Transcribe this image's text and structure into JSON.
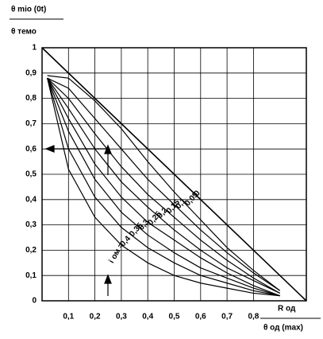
{
  "chart_data": {
    "type": "line",
    "ylabel_top": "θ mio (0t)",
    "ylabel_bottom": "θ темо",
    "xlabel_top": "R од",
    "xlabel_bottom": "θ од (max)",
    "annotation": "i ом =",
    "color": "#000000",
    "grid": true,
    "xlim": [
      0,
      1
    ],
    "ylim": [
      0,
      1
    ],
    "xticks": [
      {
        "value": 0.1,
        "label": "0,1"
      },
      {
        "value": 0.2,
        "label": "0,2"
      },
      {
        "value": 0.3,
        "label": "0,3"
      },
      {
        "value": 0.4,
        "label": "0,4"
      },
      {
        "value": 0.5,
        "label": "0,5"
      },
      {
        "value": 0.6,
        "label": "0,6"
      },
      {
        "value": 0.7,
        "label": "0,7"
      },
      {
        "value": 0.8,
        "label": "0,8"
      }
    ],
    "yticks": [
      0,
      {
        "value": 0.1,
        "label": "0,1"
      },
      {
        "value": 0.2,
        "label": "0,2"
      },
      {
        "value": 0.3,
        "label": "0,3"
      },
      {
        "value": 0.4,
        "label": "0,4"
      },
      {
        "value": 0.5,
        "label": "0,5"
      },
      {
        "value": 0.6,
        "label": "0,6"
      },
      {
        "value": 0.7,
        "label": "0,7"
      },
      {
        "value": 0.8,
        "label": "0,8"
      },
      {
        "value": 0.9,
        "label": "0,9"
      },
      1
    ],
    "series": [
      {
        "name": "0",
        "x": [
          0,
          1
        ],
        "values": [
          1,
          0
        ]
      },
      {
        "name": "0,05",
        "x": [
          0.02,
          0.1,
          0.2,
          0.3,
          0.4,
          0.5,
          0.6,
          0.7,
          0.8,
          0.9
        ],
        "values": [
          0.89,
          0.88,
          0.79,
          0.68,
          0.55,
          0.43,
          0.32,
          0.21,
          0.12,
          0.04
        ]
      },
      {
        "name": "0,1",
        "x": [
          0.02,
          0.1,
          0.2,
          0.3,
          0.4,
          0.5,
          0.6,
          0.7,
          0.8,
          0.9
        ],
        "values": [
          0.88,
          0.84,
          0.72,
          0.6,
          0.48,
          0.38,
          0.28,
          0.19,
          0.11,
          0.04
        ]
      },
      {
        "name": "0,15",
        "x": [
          0.02,
          0.1,
          0.2,
          0.3,
          0.4,
          0.5,
          0.6,
          0.7,
          0.8,
          0.9
        ],
        "values": [
          0.88,
          0.8,
          0.66,
          0.53,
          0.42,
          0.33,
          0.24,
          0.16,
          0.09,
          0.03
        ]
      },
      {
        "name": "0,2",
        "x": [
          0.02,
          0.1,
          0.2,
          0.3,
          0.4,
          0.5,
          0.6,
          0.7,
          0.8,
          0.9
        ],
        "values": [
          0.88,
          0.76,
          0.6,
          0.47,
          0.37,
          0.28,
          0.2,
          0.13,
          0.08,
          0.03
        ]
      },
      {
        "name": "0,25",
        "x": [
          0.02,
          0.1,
          0.2,
          0.3,
          0.4,
          0.5,
          0.6,
          0.7,
          0.8,
          0.9
        ],
        "values": [
          0.88,
          0.72,
          0.54,
          0.41,
          0.31,
          0.24,
          0.17,
          0.11,
          0.06,
          0.02
        ]
      },
      {
        "name": "0,3",
        "x": [
          0.02,
          0.1,
          0.2,
          0.3,
          0.4,
          0.5,
          0.6,
          0.7,
          0.8,
          0.9
        ],
        "values": [
          0.88,
          0.67,
          0.48,
          0.35,
          0.26,
          0.19,
          0.13,
          0.09,
          0.05,
          0.02
        ]
      },
      {
        "name": "0,35",
        "x": [
          0.02,
          0.1,
          0.2,
          0.3,
          0.4,
          0.5,
          0.6,
          0.7,
          0.8,
          0.9
        ],
        "values": [
          0.88,
          0.6,
          0.41,
          0.29,
          0.21,
          0.15,
          0.1,
          0.07,
          0.04,
          0.02
        ]
      },
      {
        "name": "0,4",
        "x": [
          0.02,
          0.1,
          0.2,
          0.3,
          0.4,
          0.5,
          0.6,
          0.7,
          0.8,
          0.9
        ],
        "values": [
          0.88,
          0.52,
          0.33,
          0.22,
          0.15,
          0.1,
          0.07,
          0.05,
          0.03,
          0.02
        ]
      }
    ]
  }
}
